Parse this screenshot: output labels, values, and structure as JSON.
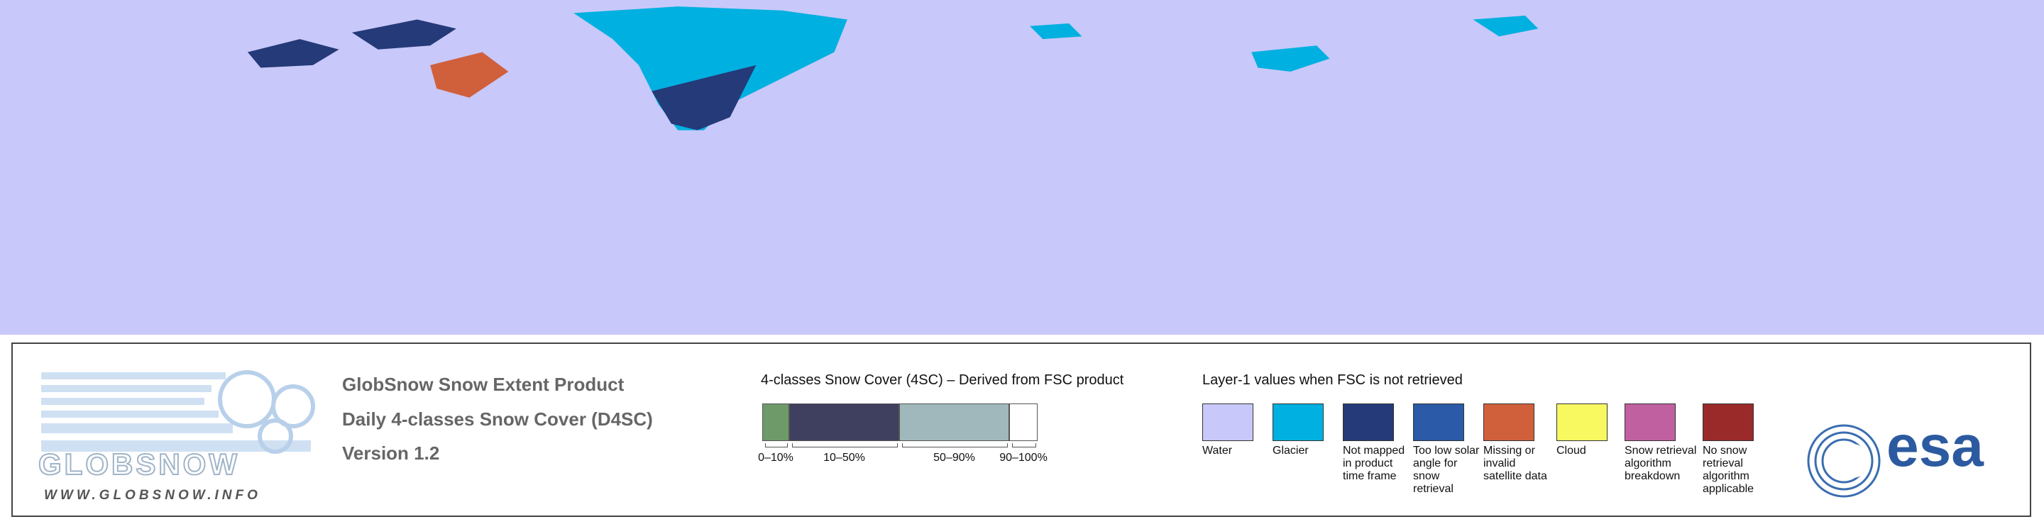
{
  "logo": {
    "name": "GLOBSNOW",
    "url": "WWW.GLOBSNOW.INFO"
  },
  "product": {
    "title": "GlobSnow Snow Extent Product",
    "subtitle": "Daily 4-classes Snow Cover (D4SC)",
    "version": "Version 1.2"
  },
  "snow_cover_legend": {
    "title": "4-classes Snow Cover (4SC) – Derived from FSC product",
    "classes": [
      {
        "label": "0–10%",
        "color": "#6e9a6a"
      },
      {
        "label": "10–50%",
        "color": "#3f3f5f"
      },
      {
        "label": "50–90%",
        "color": "#a0b8bc"
      },
      {
        "label": "90–100%",
        "color": "#ffffff"
      }
    ]
  },
  "layer1_legend": {
    "title": "Layer-1 values when FSC is not retrieved",
    "items": [
      {
        "label": "Water",
        "color": "#c8c8fa"
      },
      {
        "label": "Glacier",
        "color": "#00b0e0"
      },
      {
        "label": "Not mapped in product time frame",
        "color": "#253a78"
      },
      {
        "label": "Too low solar angle for snow retrieval",
        "color": "#2a5aa8"
      },
      {
        "label": "Missing or invalid satellite data",
        "color": "#d0603c"
      },
      {
        "label": "Cloud",
        "color": "#f8f860"
      },
      {
        "label": "Snow retrieval algorithm breakdown",
        "color": "#c060a0"
      },
      {
        "label": "No snow retrieval algorithm applicable",
        "color": "#9a2a2a"
      }
    ]
  },
  "agency": "esa"
}
